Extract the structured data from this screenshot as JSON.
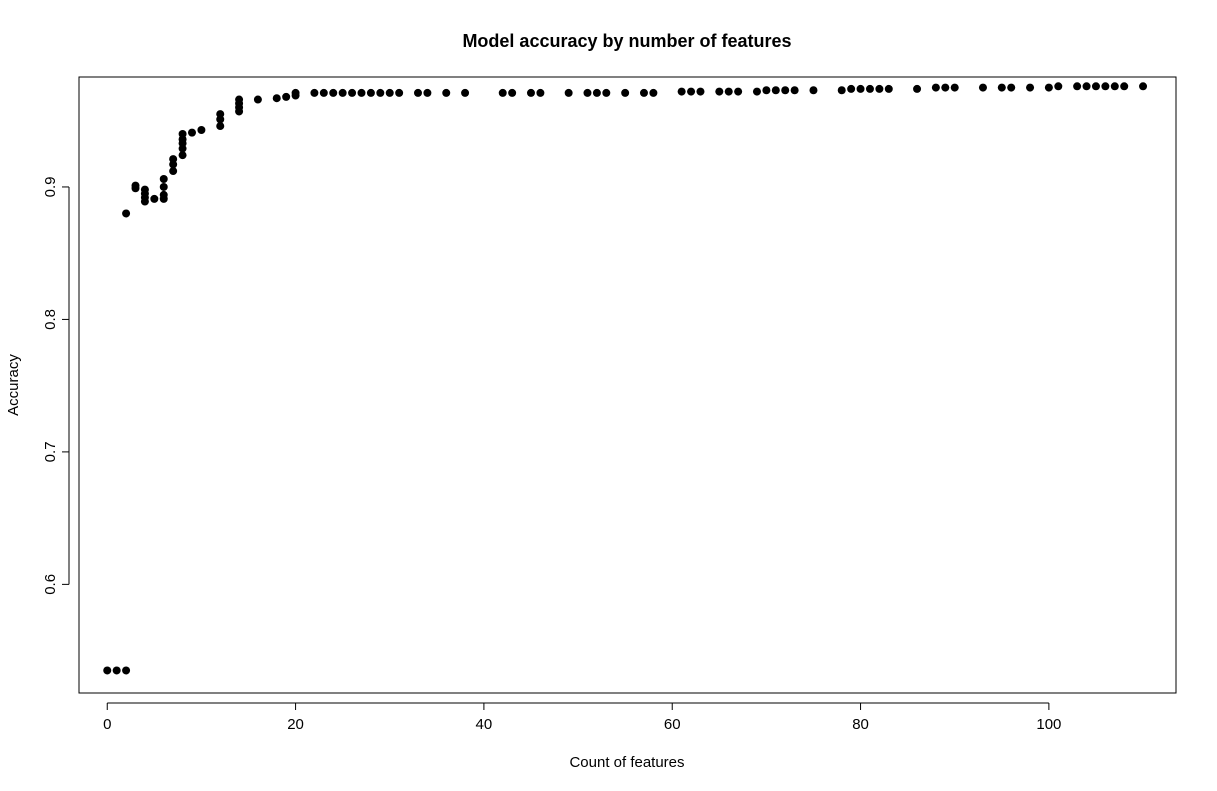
{
  "chart_data": {
    "type": "scatter",
    "title": "Model accuracy by number of features",
    "xlabel": "Count of features",
    "ylabel": "Accuracy",
    "xlim": [
      -3,
      113.5
    ],
    "ylim": [
      0.518,
      0.983
    ],
    "xticks": [
      0,
      20,
      40,
      60,
      80,
      100
    ],
    "yticks": [
      0.6,
      0.7,
      0.8,
      0.9
    ],
    "xtick_labels": [
      "0",
      "20",
      "40",
      "60",
      "80",
      "100"
    ],
    "ytick_labels": [
      "0.6",
      "0.7",
      "0.8",
      "0.9"
    ],
    "grid": false,
    "legend": "none",
    "series": [
      {
        "color": "#000000",
        "points": [
          [
            0,
            0.535
          ],
          [
            1,
            0.535
          ],
          [
            2,
            0.535
          ],
          [
            2,
            0.88
          ],
          [
            3,
            0.899
          ],
          [
            3,
            0.901
          ],
          [
            4,
            0.889
          ],
          [
            4,
            0.892
          ],
          [
            4,
            0.895
          ],
          [
            4,
            0.898
          ],
          [
            5,
            0.891
          ],
          [
            6,
            0.891
          ],
          [
            6,
            0.894
          ],
          [
            6,
            0.9
          ],
          [
            6,
            0.906
          ],
          [
            7,
            0.912
          ],
          [
            7,
            0.917
          ],
          [
            7,
            0.921
          ],
          [
            8,
            0.924
          ],
          [
            8,
            0.929
          ],
          [
            8,
            0.933
          ],
          [
            8,
            0.936
          ],
          [
            8,
            0.94
          ],
          [
            9,
            0.941
          ],
          [
            10,
            0.943
          ],
          [
            12,
            0.946
          ],
          [
            12,
            0.951
          ],
          [
            12,
            0.955
          ],
          [
            14,
            0.957
          ],
          [
            14,
            0.96
          ],
          [
            14,
            0.963
          ],
          [
            14,
            0.966
          ],
          [
            16,
            0.966
          ],
          [
            18,
            0.967
          ],
          [
            19,
            0.968
          ],
          [
            20,
            0.969
          ],
          [
            20,
            0.971
          ],
          [
            22,
            0.971
          ],
          [
            23,
            0.971
          ],
          [
            24,
            0.971
          ],
          [
            25,
            0.971
          ],
          [
            26,
            0.971
          ],
          [
            27,
            0.971
          ],
          [
            28,
            0.971
          ],
          [
            29,
            0.971
          ],
          [
            30,
            0.971
          ],
          [
            31,
            0.971
          ],
          [
            33,
            0.971
          ],
          [
            34,
            0.971
          ],
          [
            36,
            0.971
          ],
          [
            38,
            0.971
          ],
          [
            42,
            0.971
          ],
          [
            43,
            0.971
          ],
          [
            45,
            0.971
          ],
          [
            46,
            0.971
          ],
          [
            49,
            0.971
          ],
          [
            51,
            0.971
          ],
          [
            52,
            0.971
          ],
          [
            53,
            0.971
          ],
          [
            55,
            0.971
          ],
          [
            57,
            0.971
          ],
          [
            58,
            0.971
          ],
          [
            61,
            0.972
          ],
          [
            62,
            0.972
          ],
          [
            63,
            0.972
          ],
          [
            65,
            0.972
          ],
          [
            66,
            0.972
          ],
          [
            67,
            0.972
          ],
          [
            69,
            0.972
          ],
          [
            70,
            0.973
          ],
          [
            71,
            0.973
          ],
          [
            72,
            0.973
          ],
          [
            73,
            0.973
          ],
          [
            75,
            0.973
          ],
          [
            78,
            0.973
          ],
          [
            79,
            0.974
          ],
          [
            80,
            0.974
          ],
          [
            81,
            0.974
          ],
          [
            82,
            0.974
          ],
          [
            83,
            0.974
          ],
          [
            86,
            0.974
          ],
          [
            88,
            0.975
          ],
          [
            89,
            0.975
          ],
          [
            90,
            0.975
          ],
          [
            93,
            0.975
          ],
          [
            95,
            0.975
          ],
          [
            96,
            0.975
          ],
          [
            98,
            0.975
          ],
          [
            100,
            0.975
          ],
          [
            101,
            0.976
          ],
          [
            103,
            0.976
          ],
          [
            104,
            0.976
          ],
          [
            105,
            0.976
          ],
          [
            106,
            0.976
          ],
          [
            107,
            0.976
          ],
          [
            108,
            0.976
          ],
          [
            110,
            0.976
          ]
        ]
      }
    ]
  }
}
